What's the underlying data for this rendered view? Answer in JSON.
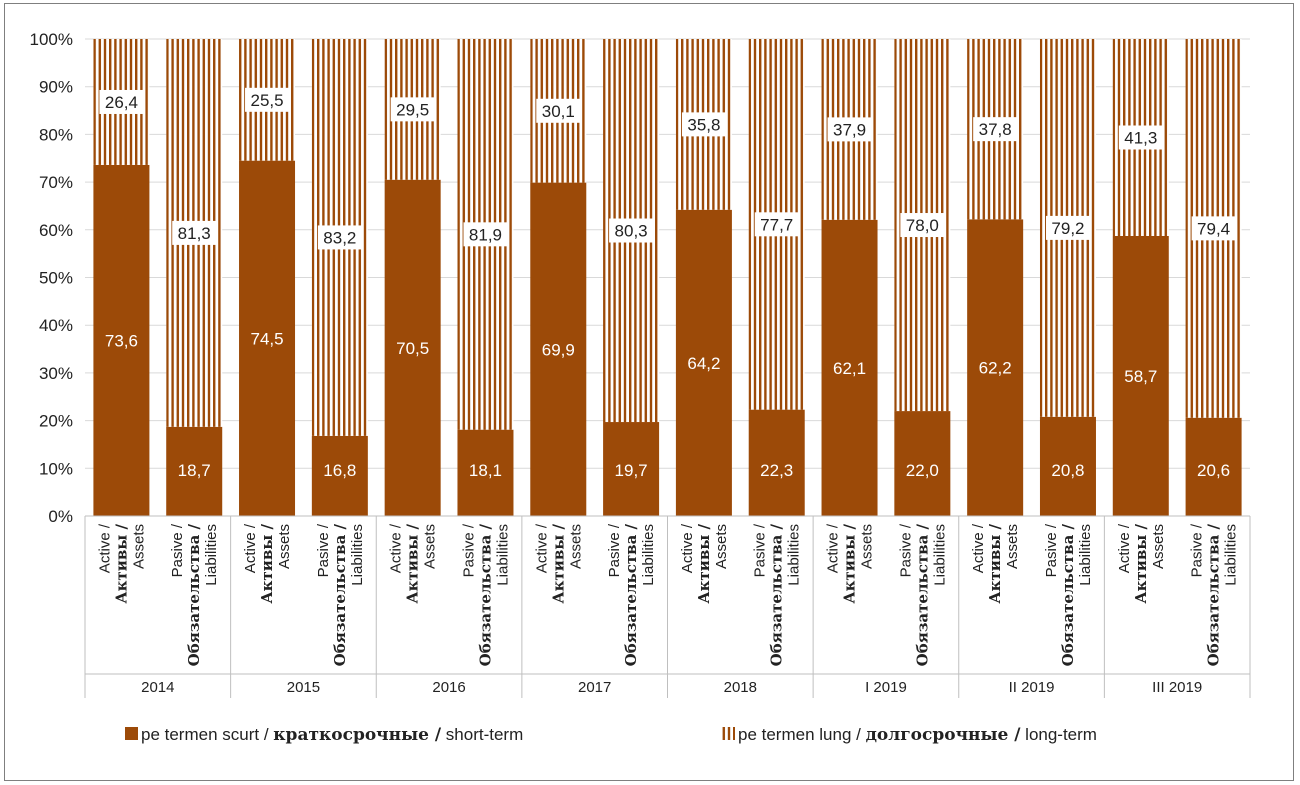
{
  "chart_data": {
    "type": "bar",
    "stacked": true,
    "percent": true,
    "groups": [
      "2014",
      "2015",
      "2016",
      "2017",
      "2018",
      "I 2019",
      "II 2019",
      "III 2019"
    ],
    "bar_labels": [
      [
        "Active /",
        "Активы /",
        "Assets"
      ],
      [
        "Pasive /",
        "Обязательства /",
        "Liabilities"
      ]
    ],
    "series": [
      {
        "name": "pe termen scurt / краткосрочные / short-term",
        "name_parts": [
          "pe termen scurt / ",
          "краткосрочные /",
          " short-term"
        ],
        "style": "solid",
        "values": [
          73.6,
          18.7,
          74.5,
          16.8,
          70.5,
          18.1,
          69.9,
          19.7,
          64.2,
          22.3,
          62.1,
          22.0,
          62.2,
          20.8,
          58.7,
          20.6
        ],
        "labels": [
          "73,6",
          "18,7",
          "74,5",
          "16,8",
          "70,5",
          "18,1",
          "69,9",
          "19,7",
          "64,2",
          "22,3",
          "62,1",
          "22,0",
          "62,2",
          "20,8",
          "58,7",
          "20,6"
        ]
      },
      {
        "name": "pe termen lung / долгосрочные / long-term",
        "name_parts": [
          "pe termen lung / ",
          "долгосрочные /",
          " long-term"
        ],
        "style": "vertical-stripes",
        "values": [
          26.4,
          81.3,
          25.5,
          83.2,
          29.5,
          81.9,
          30.1,
          80.3,
          35.8,
          77.7,
          37.9,
          78.0,
          37.8,
          79.2,
          41.3,
          79.4
        ],
        "labels": [
          "26,4",
          "81,3",
          "25,5",
          "83,2",
          "29,5",
          "81,9",
          "30,1",
          "80,3",
          "35,8",
          "77,7",
          "37,9",
          "78,0",
          "37,8",
          "79,2",
          "41,3",
          "79,4"
        ]
      }
    ],
    "yaxis": {
      "ticks": [
        "0%",
        "10%",
        "20%",
        "30%",
        "40%",
        "50%",
        "60%",
        "70%",
        "80%",
        "90%",
        "100%"
      ],
      "ylim": [
        0,
        100
      ]
    },
    "grid": true,
    "legend_position": "bottom",
    "colors": {
      "bar": "#9C4A08",
      "grid": "#d9d9d9",
      "axis": "#bfbfbf"
    }
  }
}
